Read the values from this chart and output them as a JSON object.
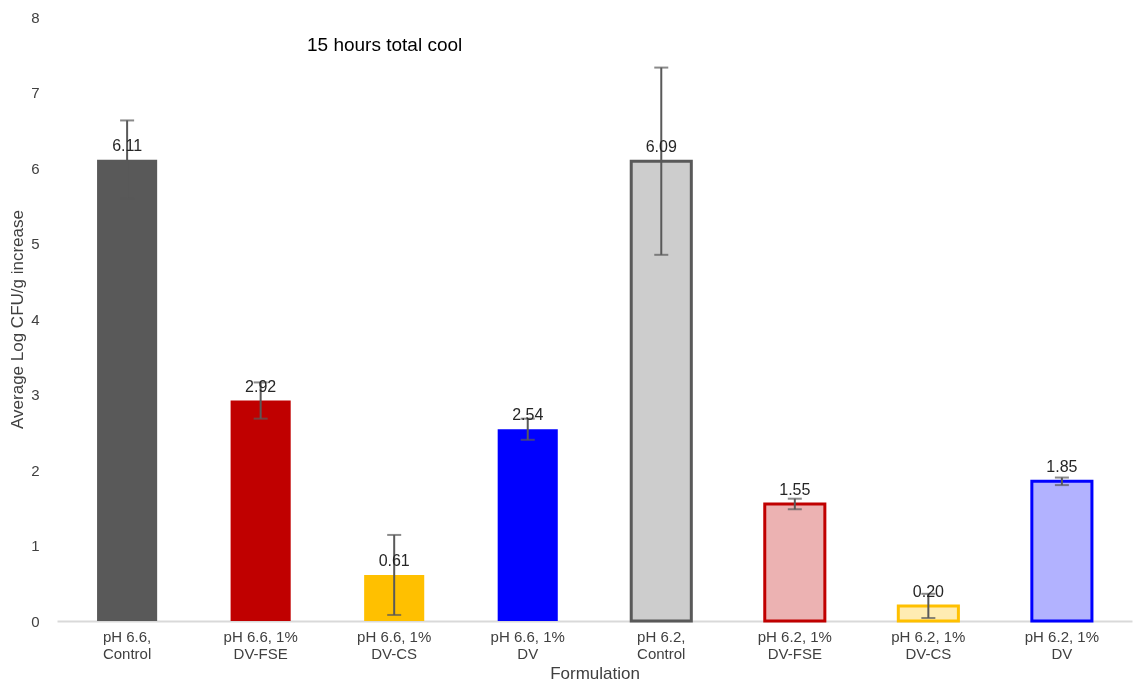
{
  "chart_data": {
    "type": "bar",
    "title": "15 hours total cool",
    "xlabel": "Formulation",
    "ylabel": "Average Log CFU/g increase",
    "categories": [
      "pH 6.6, Control",
      "pH 6.6, 1% DV-FSE",
      "pH 6.6, 1% DV-CS",
      "pH 6.6, 1% DV",
      "pH 6.2, Control",
      "pH 6.2, 1% DV-FSE",
      "pH 6.2, 1% DV-CS",
      "pH 6.2, 1% DV"
    ],
    "values": [
      6.11,
      2.92,
      0.61,
      2.54,
      6.09,
      1.55,
      0.2,
      1.85
    ],
    "value_labels": [
      "6.11",
      "2.92",
      "0.61",
      "2.54",
      "6.09",
      "1.55",
      "0.20",
      "1.85"
    ],
    "errors": [
      0.52,
      0.24,
      0.53,
      0.14,
      1.24,
      0.07,
      0.16,
      0.05
    ],
    "colors": [
      "#595959",
      "#c00000",
      "#ffc000",
      "#0000ff",
      "#595959",
      "#c00000",
      "#ffc000",
      "#0000ff"
    ],
    "ylim": [
      0,
      8
    ],
    "yticks": [
      0,
      1,
      2,
      3,
      4,
      5,
      6,
      7,
      8
    ],
    "grid": false
  }
}
